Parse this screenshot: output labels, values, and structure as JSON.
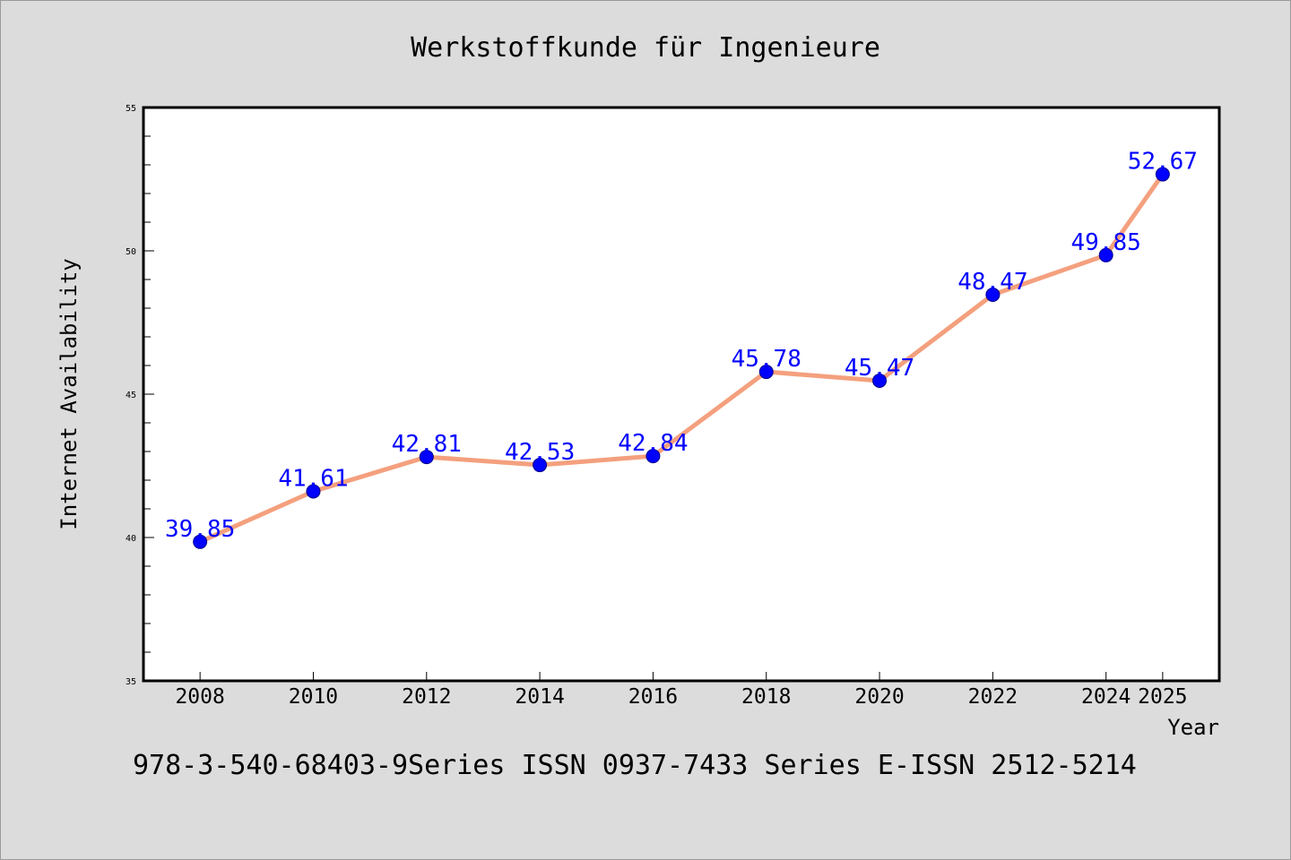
{
  "chart_data": {
    "type": "line",
    "title": "Werkstoffkunde für Ingenieure",
    "xlabel": "Year",
    "ylabel": "Internet Availability",
    "categories": [
      "2008",
      "2010",
      "2012",
      "2014",
      "2016",
      "2018",
      "2020",
      "2022",
      "2024",
      "2025"
    ],
    "values": [
      39.85,
      41.61,
      42.81,
      42.53,
      42.84,
      45.78,
      45.47,
      48.47,
      49.85,
      52.67
    ],
    "data_labels": [
      "39.85",
      "41.61",
      "42.81",
      "42.53",
      "42.84",
      "45.78",
      "45.47",
      "48.47",
      "49.85",
      "52.67"
    ],
    "ylim": [
      35,
      55
    ],
    "y_major_ticks": [
      "35",
      "40",
      "45",
      "50",
      "55"
    ],
    "y_minor_step": 1,
    "grid": false,
    "legend": "none",
    "colors": {
      "line": "#f4a07e",
      "marker": "#0000ff",
      "marker_edge": "#00008b",
      "data_label": "#0000ff",
      "plot_background": "#ffffff",
      "figure_background": "#dcdcdc"
    }
  },
  "footer": {
    "text": "978-3-540-68403-9Series ISSN 0937-7433 Series E-ISSN 2512-5214"
  }
}
